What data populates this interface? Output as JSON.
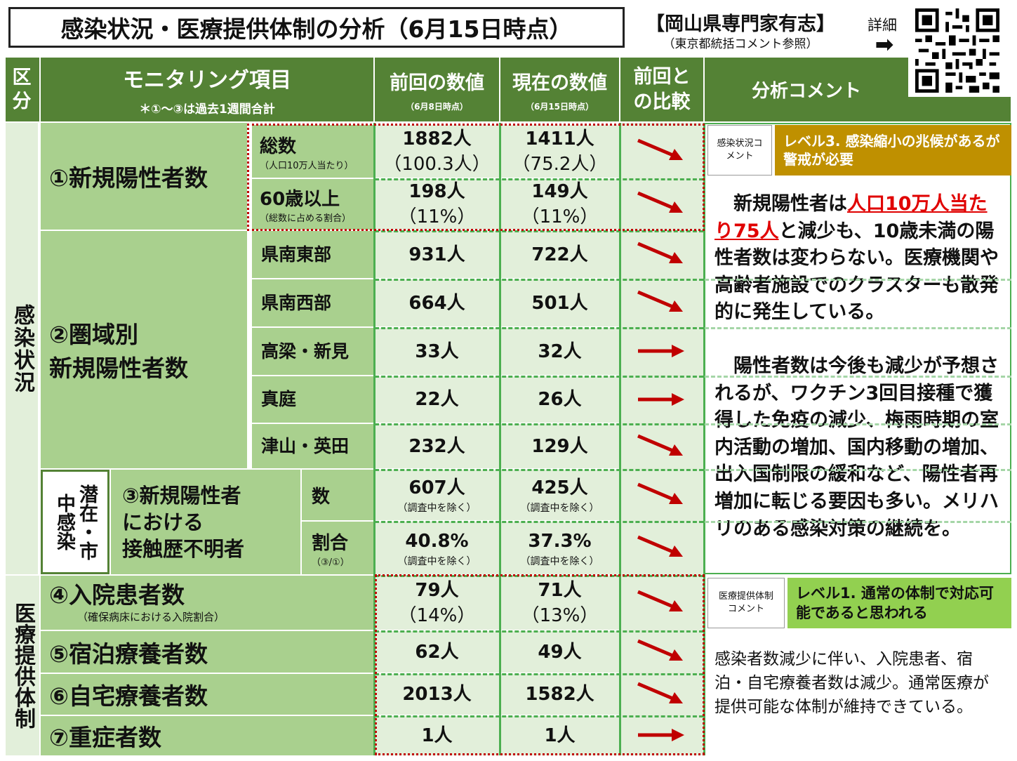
{
  "header": {
    "title": "感染状況・医療提供体制の分析（6月15日時点）",
    "source": "【岡山県専門家有志】",
    "source_note": "（東京都統括コメント参照）",
    "detail_label": "詳細",
    "detail_arrow": "➡"
  },
  "columns": {
    "category": "区分",
    "item": "モニタリング項目",
    "item_note": "＊①～③は過去1週間合計",
    "prev": "前回の数値",
    "prev_date": "（6月8日時点）",
    "curr": "現在の数値",
    "curr_date": "（6月15日時点）",
    "compare": "前回との比較",
    "comment": "分析コメント"
  },
  "section_infection": "感染状況",
  "section_medical": "医療提供体制",
  "rows": {
    "r1_title": "①新規陽性者数",
    "r1a_label": "総数",
    "r1a_sub": "（人口10万人当たり）",
    "r1a_prev": "1882人",
    "r1a_prev2": "（100.3人）",
    "r1a_curr": "1411人",
    "r1a_curr2": "（75.2人）",
    "r1b_label": "60歳以上",
    "r1b_sub": "（総数に占める割合）",
    "r1b_prev": "198人",
    "r1b_prev2": "（11%）",
    "r1b_curr": "149人",
    "r1b_curr2": "（11%）",
    "r2_title_1": "②圏域別",
    "r2_title_2": "新規陽性者数",
    "regions": [
      {
        "name": "県南東部",
        "prev": "931人",
        "curr": "722人"
      },
      {
        "name": "県南西部",
        "prev": "664人",
        "curr": "501人"
      },
      {
        "name": "高梁・新見",
        "prev": "33人",
        "curr": "32人"
      },
      {
        "name": "真庭",
        "prev": "22人",
        "curr": "26人"
      },
      {
        "name": "津山・英田",
        "prev": "232人",
        "curr": "129人"
      }
    ],
    "r3_side": "潜在・市中感染",
    "r3_title_1": "③新規陽性者",
    "r3_title_2": "における",
    "r3_title_3": "接触歴不明者",
    "r3a_label": "数",
    "r3a_prev": "607人",
    "r3a_curr": "425人",
    "r3_note": "（調査中を除く）",
    "r3b_label": "割合",
    "r3b_sub": "（③/①）",
    "r3b_prev": "40.8%",
    "r3b_curr": "37.3%",
    "r4_title": "④入院患者数",
    "r4_sub": "（確保病床における入院割合）",
    "r4_prev": "79人",
    "r4_prev2": "（14%）",
    "r4_curr": "71人",
    "r4_curr2": "（13%）",
    "r5_title": "⑤宿泊療養者数",
    "r5_prev": "62人",
    "r5_curr": "49人",
    "r6_title": "⑥自宅療養者数",
    "r6_prev": "2013人",
    "r6_curr": "1582人",
    "r7_title": "⑦重症者数",
    "r7_prev": "1人",
    "r7_curr": "1人"
  },
  "infection_comment": {
    "tag": "感染状況コメント",
    "level": "レベル3. 感染縮小の兆候があるが警戒が必要",
    "level_color": "#bf9000",
    "intro": "新規陽性者は",
    "highlight": "人口10万人当たり75人",
    "body_1": "と減少も、10歳未満の陽性者数は変わらない。医療機関や高齢者施設でのクラスターも散発的に発生している。",
    "body_2": "陽性者数は今後も減少が予想されるが、ワクチン3回目接種で獲得した免疫の減少、梅雨時期の室内活動の増加、国内移動の増加、出入国制限の緩和など、陽性者再増加に転じる要因も多い。メリハリのある感染対策の継続を。"
  },
  "medical_comment": {
    "tag": "医療提供体制コメント",
    "level": "レベル1. 通常の体制で対応可能であると思われる",
    "level_color": "#92d050",
    "body": "感染者数減少に伴い、入院患者、宿泊・自宅療養者数は減少。通常医療が提供可能な体制が維持できている。"
  },
  "trend_icons": [
    "arrow-down-right-icon",
    "arrow-right-icon"
  ],
  "colors": {
    "header_green": "#548235",
    "cell_green": "#a9d08e",
    "cell_light": "#e2efda",
    "arrow_red": "#c00000",
    "highlight_red": "#e00000"
  }
}
